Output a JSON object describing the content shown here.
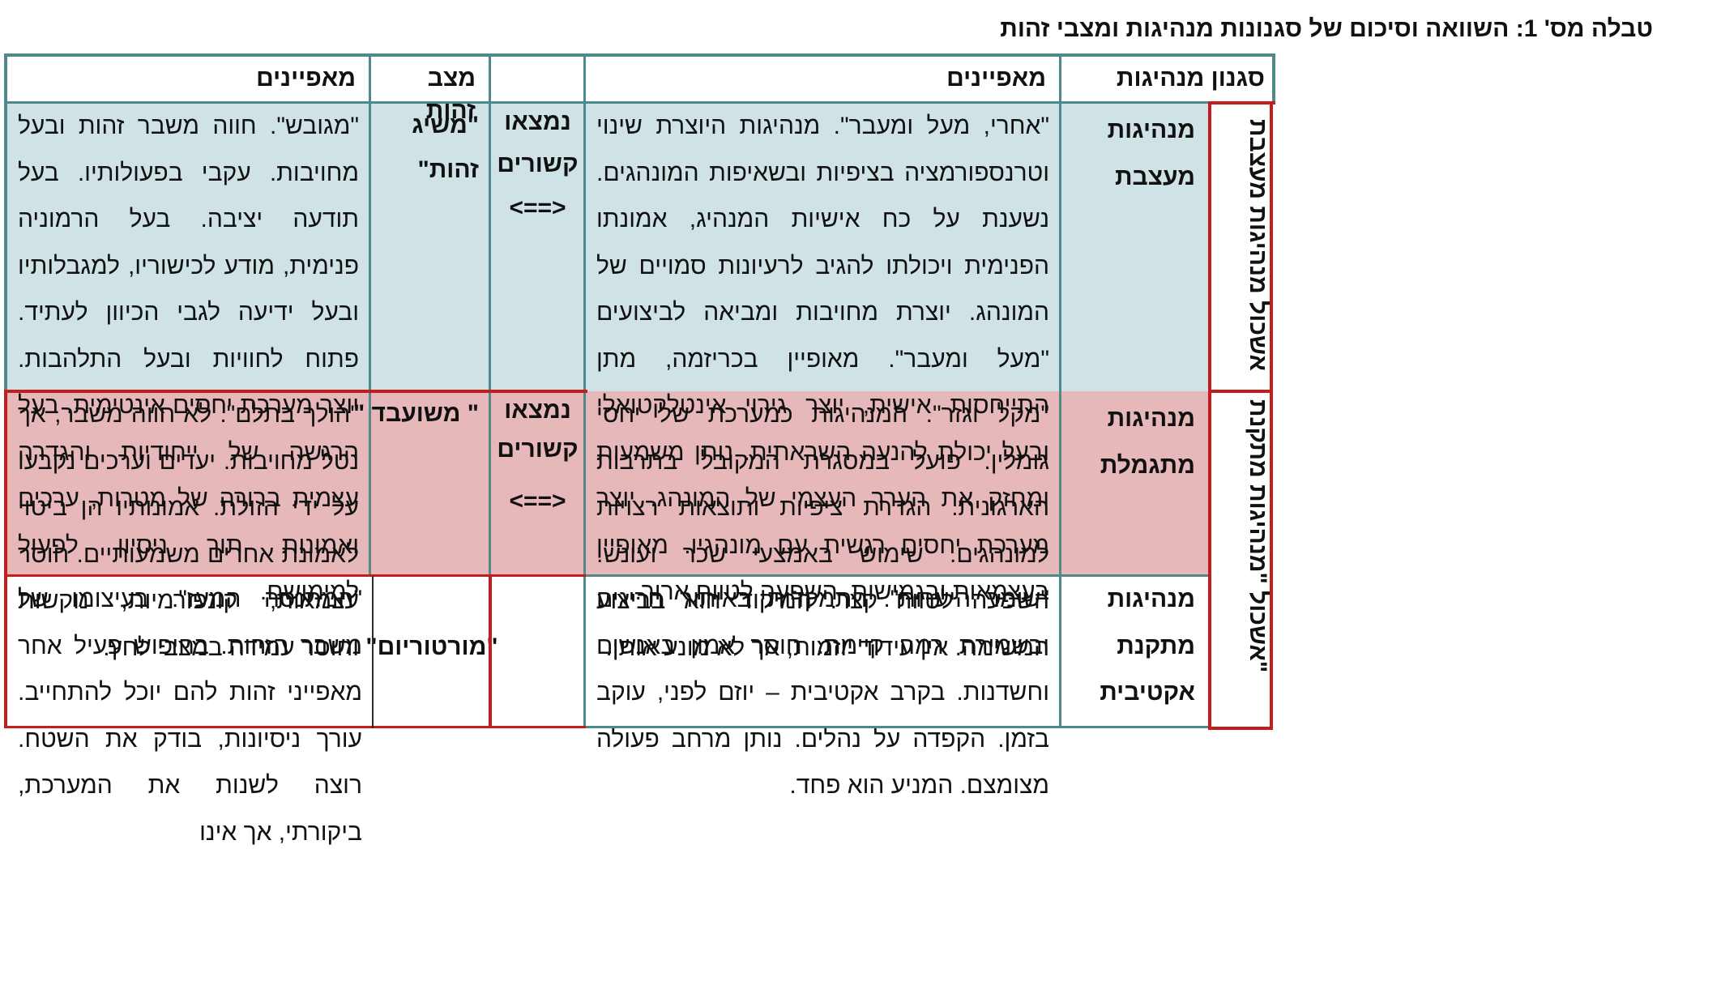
{
  "title": "טבלה מס' 1: השוואה וסיכום של סגנונות מנהיגות ומצבי זהות",
  "headers": {
    "leadership_style": "סגנון מנהיגות",
    "characteristics_right": "מאפיינים",
    "status": "מצב זהות",
    "characteristics_left": "מאפיינים"
  },
  "side_labels": {
    "transformational": "אשכול מנהיגות מעצבת",
    "corrective": "אשכול \"מנהיגות מתקנת\""
  },
  "rows": [
    {
      "style": "מנהיגות מעצבת",
      "characteristics": "\"אחרי, מעל ומעבר\". מנהיגות היוצרת שינוי וטרנספורמציה בציפיות ובשאיפות המונהגים. נשענת על כח אישיות המנהיג, אמונתו הפנימית ויכולתו להגיב לרעיונות סמויים של המונהג. יוצרת מחויבות ומביאה לביצועים \"מעל ומעבר\". מאופיין בכריזמה, מתן התייחסות אישית, יוצר גירוי אינטלקטואלי ובעל יכולת להנעה השראתית. נותן משמעות ומחזק את הערך העצמי של המונהג. יוצר מערכת יחסים רגשית עם מונהגיו. מאופיין בעצמאות ובגמישות. השפעה לטווח ארוך.",
      "link_line1": "נמצאו",
      "link_line2": "קשורים",
      "arrow": "<==>",
      "identity": "\"משיג זהות\"",
      "identity_characteristics": "\"מגובש\". חווה משבר זהות ובעל מחויבות. עקבי בפעולותיו. בעל תודעה יציבה. בעל הרמוניה פנימית, מודע לכישוריו, למגבלותיו ובעל ידיעה לגבי הכיוון לעתיד. פתוח לחוויות ובעל התלהבות. יוצר מערכת יחסים אינטימית. בעל הרגשה של ייחודיות והגדרה עצמית ברורה של מטרות, ערכים ואמונות תוך ניסיון לפעול למימושם."
    },
    {
      "style": "מנהיגות מתגמלת",
      "characteristics": "\"מקל וגזר\". המנהיגות כמערכת של יחסי גומלין. פועל במסגרת המקובל בתרבות הארגונית. הגדרת ציפיות ותוצאות רצויות למונהגים. שימוש באמצעי שכר ועונש. השפעה לטווח קצר. המיקוד הוא בביצוע המשימה. אין עידוד יוזמות, אך לא מונע אותן.",
      "link_line1": "נמצאו",
      "link_line2": "קשורים",
      "arrow": "<==>",
      "identity": "\" משועבד \"",
      "identity_characteristics": "\"הולך בתלם\". לא חווה משבר, אך נטל מחויבות. יעדים וערכים נקבעו על ידי הזולת. אמונותיו הן ביטוי לאמונת אחרים משמעותיים. חוסר עצמאות, קונפורמיות, נוקשות וחוסר עמידה במצבי לחץ."
    },
    {
      "style": "מנהיגות מתקנת אקטיבית",
      "characteristics": "\"שומר היערות\". התמקדות באיתור חריגים ובשמירת רמה קיימת. חוסר אמון באנשים וחשדנות. בקרב אקטיבית – יוזם לפני, עוקב בזמן. הקפדה על נהלים. נותן מרחב פעולה מצומצם. המניע הוא פחד.",
      "identity": "\"מורטוריום\"",
      "identity_characteristics": "\"המתנסה המעז\". בעיצומו של משבר הזהות. בחיפוש פעיל אחר מאפייני זהות להם יוכל להתחייב. עורך ניסיונות, בודק את השטח. רוצה לשנות את המערכת, ביקורתי, אך אינו"
    }
  ]
}
